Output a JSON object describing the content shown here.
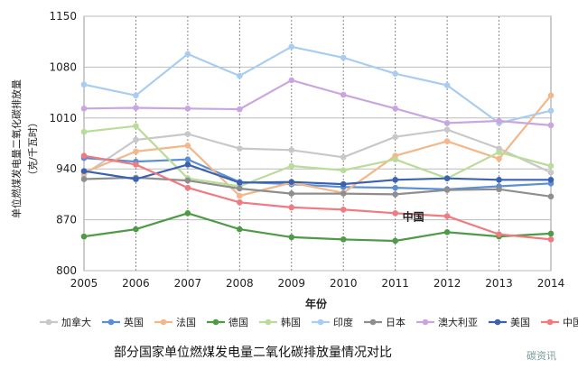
{
  "chart_data": {
    "type": "line",
    "title": "部分国家单位燃煤发电量二氧化碳排放量情况对比",
    "xlabel": "年份",
    "ylabel": "单位燃煤发电量二氧化碳排放量",
    "ylabel_unit": "（克/千瓦时）",
    "x": [
      "2005",
      "2006",
      "2007",
      "2008",
      "2009",
      "2010",
      "2011",
      "2012",
      "2013",
      "2014"
    ],
    "ylim": [
      800,
      1150
    ],
    "yticks": [
      "800",
      "870",
      "940",
      "1010",
      "1080",
      "1150"
    ],
    "grid": {
      "horizontal": true,
      "vertical": true
    },
    "legend_position": "bottom",
    "annotation": "中国",
    "series": [
      {
        "name": "加拿大",
        "color": "#c8c8c8",
        "values": [
          932,
          980,
          988,
          968,
          966,
          956,
          984,
          994,
          968,
          935
        ]
      },
      {
        "name": "英国",
        "color": "#5b8fd4",
        "values": [
          955,
          950,
          953,
          922,
          919,
          915,
          914,
          912,
          916,
          920
        ]
      },
      {
        "name": "法国",
        "color": "#f3b78a",
        "values": [
          935,
          964,
          972,
          903,
          921,
          907,
          958,
          978,
          954,
          1041
        ]
      },
      {
        "name": "德国",
        "color": "#4f9a46",
        "values": [
          847,
          857,
          879,
          857,
          846,
          843,
          841,
          853,
          847,
          851
        ]
      },
      {
        "name": "韩国",
        "color": "#b9dc98",
        "values": [
          991,
          999,
          927,
          916,
          944,
          938,
          953,
          927,
          963,
          944
        ]
      },
      {
        "name": "印度",
        "color": "#a9cdf0",
        "values": [
          1056,
          1041,
          1098,
          1068,
          1108,
          1093,
          1071,
          1055,
          1003,
          1020
        ]
      },
      {
        "name": "日本",
        "color": "#8e8e8e",
        "values": [
          926,
          928,
          924,
          913,
          906,
          906,
          905,
          911,
          912,
          902
        ]
      },
      {
        "name": "澳大利亚",
        "color": "#caa6e0",
        "values": [
          1023,
          1024,
          1023,
          1022,
          1062,
          1042,
          1023,
          1003,
          1006,
          1000
        ]
      },
      {
        "name": "美国",
        "color": "#3b62b0",
        "values": [
          937,
          926,
          946,
          921,
          922,
          919,
          925,
          927,
          925,
          925
        ]
      },
      {
        "name": "中国",
        "color": "#f07a80",
        "values": [
          958,
          946,
          914,
          894,
          887,
          884,
          879,
          875,
          850,
          843
        ]
      }
    ]
  },
  "watermark": "碳资讯"
}
